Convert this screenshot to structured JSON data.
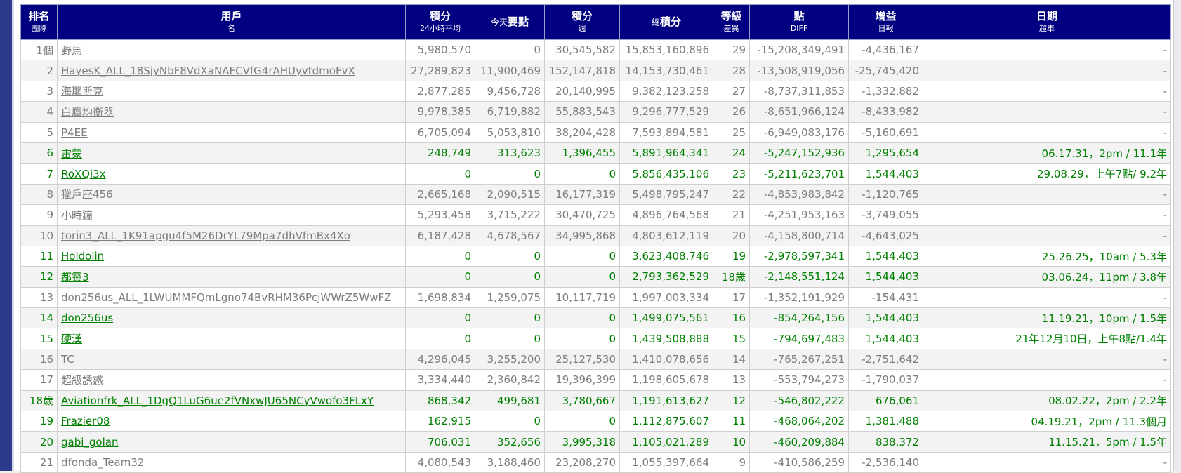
{
  "headers": [
    {
      "top": "排名",
      "sub": "團隊"
    },
    {
      "top": "用戶",
      "sub": "名"
    },
    {
      "top": "積分",
      "sub": "24小時平均"
    },
    {
      "pre": "今天",
      "main": "要點"
    },
    {
      "top": "積分",
      "sub": "週"
    },
    {
      "pre": "總",
      "main": "積分"
    },
    {
      "top": "等級",
      "sub": "差異"
    },
    {
      "top": "點",
      "sub": "DIFF"
    },
    {
      "top": "增益",
      "sub": "日報"
    },
    {
      "top": "日期",
      "sub": "超車"
    }
  ],
  "rows": [
    {
      "rank": "1個",
      "name": "野馬",
      "avg24": "5,980,570",
      "today": "0",
      "week": "30,545,582",
      "total": "15,853,160,896",
      "rank_diff": "29",
      "points_diff": "-15,208,349,491",
      "gain": "-4,436,167",
      "date": "-",
      "style": "gray"
    },
    {
      "rank": "2",
      "name": "HayesK_ALL_18SjyNbF8VdXaNAFCVfG4rAHUyvtdmoFvX",
      "avg24": "27,289,823",
      "today": "11,900,469",
      "week": "152,147,818",
      "total": "14,153,730,461",
      "rank_diff": "28",
      "points_diff": "-13,508,919,056",
      "gain": "-25,745,420",
      "date": "-",
      "style": "gray"
    },
    {
      "rank": "3",
      "name": "海耶斯克",
      "avg24": "2,877,285",
      "today": "9,456,728",
      "week": "20,140,995",
      "total": "9,382,123,258",
      "rank_diff": "27",
      "points_diff": "-8,737,311,853",
      "gain": "-1,332,882",
      "date": "-",
      "style": "gray"
    },
    {
      "rank": "4",
      "name": "白鷹均衡器",
      "avg24": "9,978,385",
      "today": "6,719,882",
      "week": "55,883,543",
      "total": "9,296,777,529",
      "rank_diff": "26",
      "points_diff": "-8,651,966,124",
      "gain": "-8,433,982",
      "date": "-",
      "style": "gray"
    },
    {
      "rank": "5",
      "name": "P4EE",
      "avg24": "6,705,094",
      "today": "5,053,810",
      "week": "38,204,428",
      "total": "7,593,894,581",
      "rank_diff": "25",
      "points_diff": "-6,949,083,176",
      "gain": "-5,160,691",
      "date": "-",
      "style": "gray"
    },
    {
      "rank": "6",
      "name": "雷蒙",
      "avg24": "248,749",
      "today": "313,623",
      "week": "1,396,455",
      "total": "5,891,964,341",
      "rank_diff": "24",
      "points_diff": "-5,247,152,936",
      "gain": "1,295,654",
      "date": "06.17.31，2pm / 11.1年",
      "style": "green"
    },
    {
      "rank": "7",
      "name": "RoXQi3x",
      "avg24": "0",
      "today": "0",
      "week": "0",
      "total": "5,856,435,106",
      "rank_diff": "23",
      "points_diff": "-5,211,623,701",
      "gain": "1,544,403",
      "date": "29.08.29，上午7點/ 9.2年",
      "style": "green"
    },
    {
      "rank": "8",
      "name": "獵戶座456",
      "avg24": "2,665,168",
      "today": "2,090,515",
      "week": "16,177,319",
      "total": "5,498,795,247",
      "rank_diff": "22",
      "points_diff": "-4,853,983,842",
      "gain": "-1,120,765",
      "date": "-",
      "style": "gray"
    },
    {
      "rank": "9",
      "name": "小時鐘",
      "avg24": "5,293,458",
      "today": "3,715,222",
      "week": "30,470,725",
      "total": "4,896,764,568",
      "rank_diff": "21",
      "points_diff": "-4,251,953,163",
      "gain": "-3,749,055",
      "date": "-",
      "style": "gray"
    },
    {
      "rank": "10",
      "name": "torin3_ALL_1K91apgu4f5M26DrYL79Mpa7dhVfmBx4Xo",
      "avg24": "6,187,428",
      "today": "4,678,567",
      "week": "34,995,868",
      "total": "4,803,612,119",
      "rank_diff": "20",
      "points_diff": "-4,158,800,714",
      "gain": "-4,643,025",
      "date": "-",
      "style": "gray"
    },
    {
      "rank": "11",
      "name": "Holdolin",
      "avg24": "0",
      "today": "0",
      "week": "0",
      "total": "3,623,408,746",
      "rank_diff": "19",
      "points_diff": "-2,978,597,341",
      "gain": "1,544,403",
      "date": "25.26.25，10am / 5.3年",
      "style": "green"
    },
    {
      "rank": "12",
      "name": "都靈3",
      "avg24": "0",
      "today": "0",
      "week": "0",
      "total": "2,793,362,529",
      "rank_diff": "18歲",
      "points_diff": "-2,148,551,124",
      "gain": "1,544,403",
      "date": "03.06.24，11pm / 3.8年",
      "style": "green"
    },
    {
      "rank": "13",
      "name": "don256us_ALL_1LWUMMFQmLgno74BvRHM36PcjWWrZ5WwFZ",
      "avg24": "1,698,834",
      "today": "1,259,075",
      "week": "10,117,719",
      "total": "1,997,003,334",
      "rank_diff": "17",
      "points_diff": "-1,352,191,929",
      "gain": "-154,431",
      "date": "-",
      "style": "gray"
    },
    {
      "rank": "14",
      "name": "don256us",
      "avg24": "0",
      "today": "0",
      "week": "0",
      "total": "1,499,075,561",
      "rank_diff": "16",
      "points_diff": "-854,264,156",
      "gain": "1,544,403",
      "date": "11.19.21，10pm / 1.5年",
      "style": "green"
    },
    {
      "rank": "15",
      "name": "硬漢",
      "avg24": "0",
      "today": "0",
      "week": "0",
      "total": "1,439,508,888",
      "rank_diff": "15",
      "points_diff": "-794,697,483",
      "gain": "1,544,403",
      "date": "21年12月10日，上午8點/1.4年",
      "style": "green"
    },
    {
      "rank": "16",
      "name": "TC",
      "avg24": "4,296,045",
      "today": "3,255,200",
      "week": "25,127,530",
      "total": "1,410,078,656",
      "rank_diff": "14",
      "points_diff": "-765,267,251",
      "gain": "-2,751,642",
      "date": "-",
      "style": "gray"
    },
    {
      "rank": "17",
      "name": "超級誘惑",
      "avg24": "3,334,440",
      "today": "2,360,842",
      "week": "19,396,399",
      "total": "1,198,605,678",
      "rank_diff": "13",
      "points_diff": "-553,794,273",
      "gain": "-1,790,037",
      "date": "-",
      "style": "gray"
    },
    {
      "rank": "18歲",
      "name": "Aviationfrk_ALL_1DgQ1LuG6ue2fVNxwJU65NCyVwofo3FLxY",
      "avg24": "868,342",
      "today": "499,681",
      "week": "3,780,667",
      "total": "1,191,613,627",
      "rank_diff": "12",
      "points_diff": "-546,802,222",
      "gain": "676,061",
      "date": "08.02.22，2pm / 2.2年",
      "style": "green"
    },
    {
      "rank": "19",
      "name": "Frazier08",
      "avg24": "162,915",
      "today": "0",
      "week": "0",
      "total": "1,112,875,607",
      "rank_diff": "11",
      "points_diff": "-468,064,202",
      "gain": "1,381,488",
      "date": "04.19.21，2pm / 11.3個月",
      "style": "green"
    },
    {
      "rank": "20",
      "name": "gabi_golan",
      "avg24": "706,031",
      "today": "352,656",
      "week": "3,995,318",
      "total": "1,105,021,289",
      "rank_diff": "10",
      "points_diff": "-460,209,884",
      "gain": "838,372",
      "date": "11.15.21，5pm / 1.5年",
      "style": "green"
    },
    {
      "rank": "21",
      "name": "dfonda_Team32",
      "avg24": "4,080,543",
      "today": "3,188,460",
      "week": "23,208,270",
      "total": "1,055,397,664",
      "rank_diff": "9",
      "points_diff": "-410,586,259",
      "gain": "-2,536,140",
      "date": "-",
      "style": "gray"
    }
  ],
  "colors": {
    "header_bg": "#000080",
    "gray_text": "#7d7d7d",
    "green_text": "#008000",
    "left_bar": "#2b3a8a"
  }
}
